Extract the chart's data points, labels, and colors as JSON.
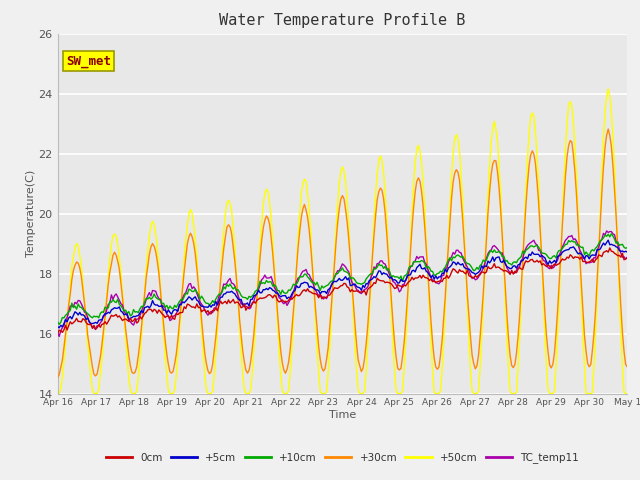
{
  "title": "Water Temperature Profile B",
  "xlabel": "Time",
  "ylabel": "Temperature(C)",
  "ylim": [
    14,
    26
  ],
  "tick_labels": [
    "Apr 16",
    "Apr 17",
    "Apr 18",
    "Apr 19",
    "Apr 20",
    "Apr 21",
    "Apr 22",
    "Apr 23",
    "Apr 24",
    "Apr 25",
    "Apr 26",
    "Apr 27",
    "Apr 28",
    "Apr 29",
    "Apr 30",
    "May 1"
  ],
  "plot_bg_color": "#e8e8e8",
  "fig_bg_color": "#f0f0f0",
  "annotation_text": "SW_met",
  "annotation_color": "#8B0000",
  "annotation_bg": "#FFFF00",
  "series_colors": {
    "0cm": "#cc0000",
    "+5cm": "#0000cc",
    "+10cm": "#00aa00",
    "+30cm": "#ff8800",
    "+50cm": "#ffff00",
    "TC_temp11": "#aa00aa"
  },
  "series_linewidth": 1.0,
  "legend_entries": [
    "0cm",
    "+5cm",
    "+10cm",
    "+30cm",
    "+50cm",
    "TC_temp11"
  ]
}
